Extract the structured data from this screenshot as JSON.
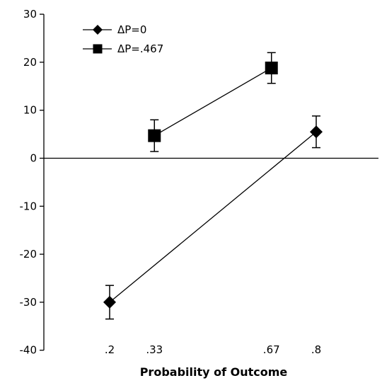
{
  "chart_data": {
    "type": "line",
    "title": "",
    "xlabel": "Probability of Outcome",
    "ylabel": "",
    "ylim": [
      -40,
      30
    ],
    "yticks": [
      -40,
      -30,
      -20,
      -10,
      0,
      10,
      20,
      30
    ],
    "x_ticks": [
      {
        "value": 0.2,
        "label": ".2"
      },
      {
        "value": 0.33,
        "label": ".33"
      },
      {
        "value": 0.67,
        "label": ".67"
      },
      {
        "value": 0.8,
        "label": ".8"
      }
    ],
    "grid": false,
    "zero_line": true,
    "legend_position": "top-left",
    "series": [
      {
        "name": "ΔP=0",
        "marker": "diamond",
        "x": [
          0.2,
          0.8
        ],
        "y": [
          -30,
          5.5
        ],
        "err": [
          3.5,
          3.3
        ]
      },
      {
        "name": "ΔP=.467",
        "marker": "square",
        "x": [
          0.33,
          0.67
        ],
        "y": [
          4.7,
          18.8
        ],
        "err": [
          3.3,
          3.2
        ]
      }
    ]
  }
}
